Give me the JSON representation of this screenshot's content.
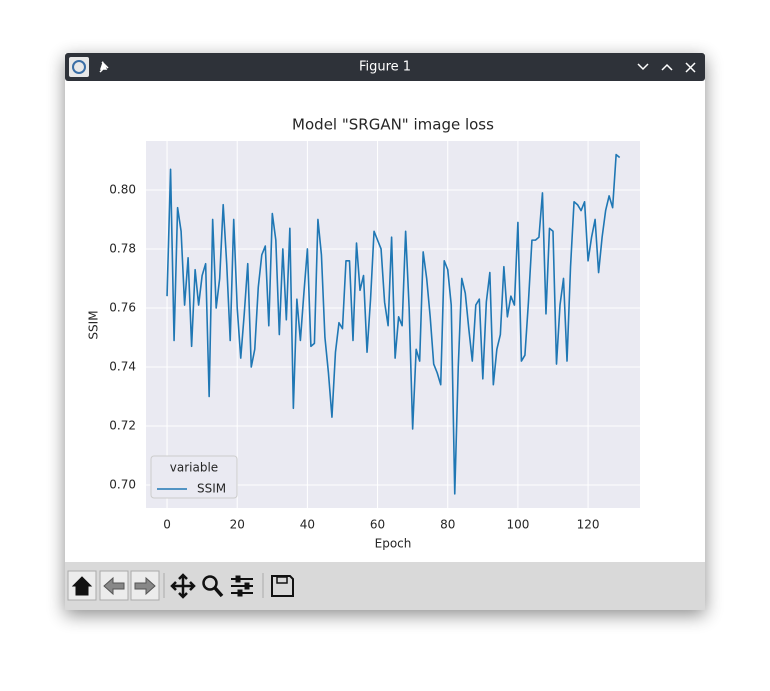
{
  "window": {
    "title": "Figure 1"
  },
  "chart_data": {
    "type": "line",
    "title": "Model \"SRGAN\" image loss",
    "xlabel": "Epoch",
    "ylabel": "SSIM",
    "x": [
      0,
      1,
      2,
      3,
      4,
      5,
      6,
      7,
      8,
      9,
      10,
      11,
      12,
      13,
      14,
      15,
      16,
      17,
      18,
      19,
      20,
      21,
      22,
      23,
      24,
      25,
      26,
      27,
      28,
      29,
      30,
      31,
      32,
      33,
      34,
      35,
      36,
      37,
      38,
      39,
      40,
      41,
      42,
      43,
      44,
      45,
      46,
      47,
      48,
      49,
      50,
      51,
      52,
      53,
      54,
      55,
      56,
      57,
      58,
      59,
      60,
      61,
      62,
      63,
      64,
      65,
      66,
      67,
      68,
      69,
      70,
      71,
      72,
      73,
      74,
      75,
      76,
      77,
      78,
      79,
      80,
      81,
      82,
      83,
      84,
      85,
      86,
      87,
      88,
      89,
      90,
      91,
      92,
      93,
      94,
      95,
      96,
      97,
      98,
      99,
      100,
      101,
      102,
      103,
      104,
      105,
      106,
      107,
      108,
      109,
      110,
      111,
      112,
      113,
      114,
      115,
      116,
      117,
      118,
      119,
      120,
      121,
      122,
      123,
      124,
      125,
      126,
      127,
      128,
      129
    ],
    "series": [
      {
        "name": "SSIM",
        "color": "#1f77b4",
        "values": [
          0.764,
          0.807,
          0.749,
          0.794,
          0.786,
          0.761,
          0.777,
          0.747,
          0.773,
          0.761,
          0.771,
          0.775,
          0.73,
          0.79,
          0.76,
          0.77,
          0.795,
          0.775,
          0.749,
          0.79,
          0.76,
          0.743,
          0.758,
          0.775,
          0.74,
          0.746,
          0.767,
          0.778,
          0.781,
          0.754,
          0.792,
          0.783,
          0.751,
          0.78,
          0.756,
          0.787,
          0.726,
          0.763,
          0.749,
          0.765,
          0.78,
          0.747,
          0.748,
          0.79,
          0.778,
          0.75,
          0.738,
          0.723,
          0.745,
          0.755,
          0.753,
          0.776,
          0.776,
          0.749,
          0.782,
          0.766,
          0.771,
          0.745,
          0.763,
          0.786,
          0.783,
          0.78,
          0.762,
          0.754,
          0.784,
          0.743,
          0.757,
          0.754,
          0.786,
          0.76,
          0.719,
          0.746,
          0.742,
          0.779,
          0.77,
          0.757,
          0.741,
          0.738,
          0.734,
          0.776,
          0.773,
          0.761,
          0.697,
          0.74,
          0.77,
          0.765,
          0.753,
          0.742,
          0.761,
          0.763,
          0.736,
          0.762,
          0.772,
          0.734,
          0.746,
          0.751,
          0.774,
          0.757,
          0.764,
          0.761,
          0.789,
          0.742,
          0.744,
          0.762,
          0.783,
          0.783,
          0.784,
          0.799,
          0.758,
          0.787,
          0.786,
          0.741,
          0.761,
          0.77,
          0.742,
          0.774,
          0.796,
          0.795,
          0.793,
          0.796,
          0.776,
          0.784,
          0.79,
          0.772,
          0.784,
          0.793,
          0.798,
          0.794,
          0.812,
          0.811
        ]
      }
    ],
    "xlim": [
      -6,
      134.8
    ],
    "ylim": [
      0.6922,
      0.8166
    ],
    "xticks": [
      0,
      20,
      40,
      60,
      80,
      100,
      120
    ],
    "yticks": [
      {
        "value": 0.7,
        "label": "0.70"
      },
      0.72,
      0.74,
      0.76,
      0.78,
      {
        "value": 0.8,
        "label": "0.80"
      }
    ],
    "grid": true,
    "legend": {
      "title": "variable",
      "loc": "lower left"
    }
  }
}
